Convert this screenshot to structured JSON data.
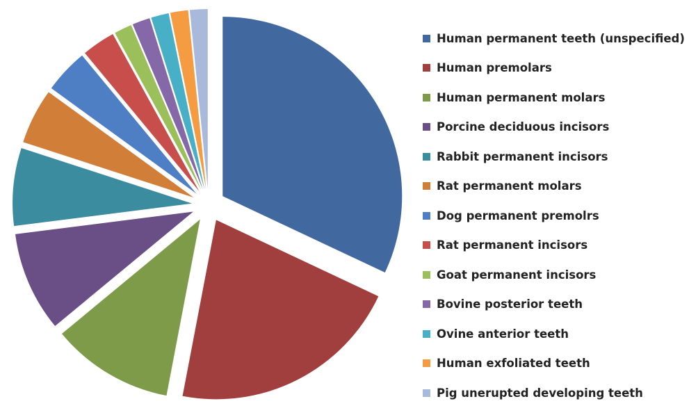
{
  "chart_data": {
    "type": "pie",
    "exploded": true,
    "legend_position": "right",
    "series": [
      {
        "name": "Human permanent teeth (unspecified)",
        "value": 32,
        "color": "#4169A0"
      },
      {
        "name": "Human premolars",
        "value": 21,
        "color": "#A03F3E"
      },
      {
        "name": "Human permanent molars",
        "value": 11,
        "color": "#7D9B48"
      },
      {
        "name": "Porcine deciduous incisors",
        "value": 9,
        "color": "#6A4E86"
      },
      {
        "name": "Rabbit permanent incisors",
        "value": 7,
        "color": "#3C8CA0"
      },
      {
        "name": "Rat permanent molars",
        "value": 5,
        "color": "#D07E38"
      },
      {
        "name": "Dog permanent premolrs",
        "value": 4,
        "color": "#4E7FC5"
      },
      {
        "name": "Rat permanent incisors",
        "value": 3,
        "color": "#C84E4C"
      },
      {
        "name": "Goat permanent incisors",
        "value": 1.6,
        "color": "#9BBF5A"
      },
      {
        "name": "Bovine posterior teeth",
        "value": 1.6,
        "color": "#8468A8"
      },
      {
        "name": "Ovine anterior teeth",
        "value": 1.6,
        "color": "#47AFC6"
      },
      {
        "name": "Human exfoliated teeth",
        "value": 1.6,
        "color": "#F59B41"
      },
      {
        "name": "Pig unerupted developing teeth",
        "value": 1.6,
        "color": "#A8B9DC"
      }
    ]
  }
}
